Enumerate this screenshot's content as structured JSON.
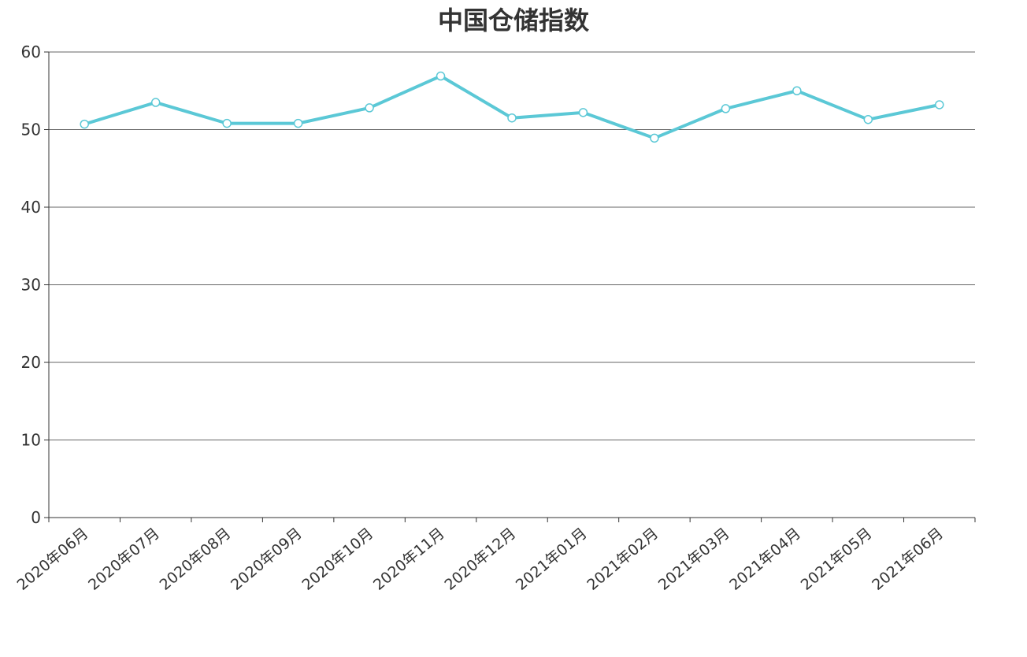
{
  "chart_data": {
    "type": "line",
    "title": "中国仓储指数",
    "categories": [
      "2020年06月",
      "2020年07月",
      "2020年08月",
      "2020年09月",
      "2020年10月",
      "2020年11月",
      "2020年12月",
      "2021年01月",
      "2021年02月",
      "2021年03月",
      "2021年04月",
      "2021年05月",
      "2021年06月"
    ],
    "series": [
      {
        "values": [
          50.7,
          53.5,
          50.8,
          50.8,
          52.8,
          56.9,
          51.5,
          52.2,
          48.9,
          52.7,
          55.0,
          51.3,
          53.2
        ]
      }
    ],
    "yticks": [
      "0",
      "10",
      "20",
      "30",
      "40",
      "50",
      "60"
    ],
    "ylim": [
      0,
      60
    ],
    "grid": true,
    "colors": {
      "line": "#5bc8d6",
      "marker_fill": "#ffffff",
      "grid": "#666666",
      "axis": "#333333",
      "text": "#333333"
    }
  }
}
